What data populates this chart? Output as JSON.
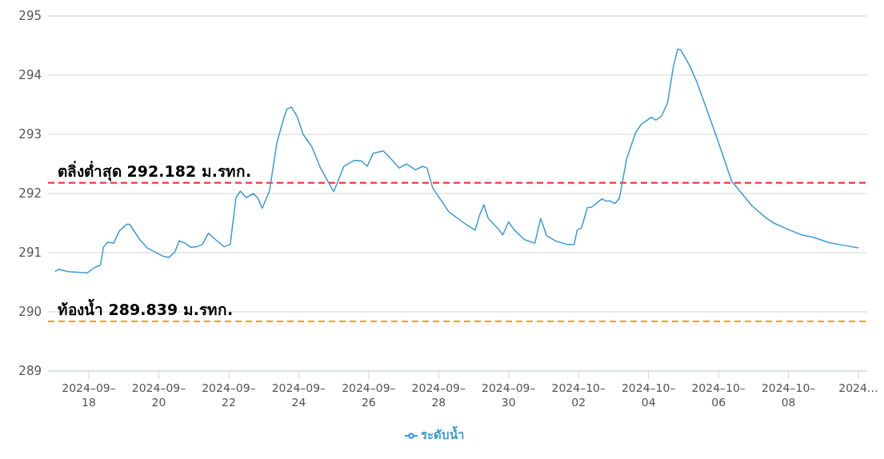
{
  "chart_data": {
    "type": "line",
    "x": [
      "2024-09-17T01:00",
      "2024-09-17T03:00",
      "2024-09-17T10:00",
      "2024-09-17T23:00",
      "2024-09-18T04:00",
      "2024-09-18T08:00",
      "2024-09-18T10:00",
      "2024-09-18T13:00",
      "2024-09-18T17:00",
      "2024-09-18T21:00",
      "2024-09-19T02:00",
      "2024-09-19T04:00",
      "2024-09-19T11:00",
      "2024-09-19T16:00",
      "2024-09-20T03:00",
      "2024-09-20T07:00",
      "2024-09-20T11:00",
      "2024-09-20T14:00",
      "2024-09-20T18:00",
      "2024-09-20T22:00",
      "2024-09-21T02:00",
      "2024-09-21T06:00",
      "2024-09-21T10:00",
      "2024-09-21T15:00",
      "2024-09-21T21:00",
      "2024-09-22T01:00",
      "2024-09-22T05:00",
      "2024-09-22T08:00",
      "2024-09-22T12:00",
      "2024-09-22T17:00",
      "2024-09-22T20:00",
      "2024-09-22T23:00",
      "2024-09-23T04:00",
      "2024-09-23T09:00",
      "2024-09-23T14:00",
      "2024-09-23T16:00",
      "2024-09-23T19:00",
      "2024-09-23T23:00",
      "2024-09-24T03:00",
      "2024-09-24T09:00",
      "2024-09-24T15:00",
      "2024-09-25T00:00",
      "2024-09-25T07:00",
      "2024-09-25T14:00",
      "2024-09-25T19:00",
      "2024-09-25T23:00",
      "2024-09-26T03:00",
      "2024-09-26T10:00",
      "2024-09-26T14:00",
      "2024-09-26T21:00",
      "2024-09-27T02:00",
      "2024-09-27T08:00",
      "2024-09-27T13:00",
      "2024-09-27T16:00",
      "2024-09-27T20:00",
      "2024-09-28T07:00",
      "2024-09-28T18:00",
      "2024-09-29T01:00",
      "2024-09-29T04:00",
      "2024-09-29T07:00",
      "2024-09-29T10:00",
      "2024-09-29T17:00",
      "2024-09-29T20:00",
      "2024-09-30T00:00",
      "2024-09-30T04:00",
      "2024-09-30T11:00",
      "2024-09-30T18:00",
      "2024-09-30T22:00",
      "2024-10-01T02:00",
      "2024-10-01T08:00",
      "2024-10-01T16:00",
      "2024-10-01T21:00",
      "2024-10-01T23:00",
      "2024-10-02T02:00",
      "2024-10-02T06:00",
      "2024-10-02T09:00",
      "2024-10-02T16:00",
      "2024-10-02T19:00",
      "2024-10-02T21:00",
      "2024-10-03T01:00",
      "2024-10-03T04:00",
      "2024-10-03T09:00",
      "2024-10-03T15:00",
      "2024-10-03T19:00",
      "2024-10-04T02:00",
      "2024-10-04T05:00",
      "2024-10-04T09:00",
      "2024-10-04T13:00",
      "2024-10-04T17:00",
      "2024-10-04T20:00",
      "2024-10-04T22:00",
      "2024-10-05T04:00",
      "2024-10-05T09:00",
      "2024-10-05T16:00",
      "2024-10-06T00:00",
      "2024-10-06T09:00",
      "2024-10-06T16:00",
      "2024-10-06T23:00",
      "2024-10-07T09:00",
      "2024-10-07T14:00",
      "2024-10-08T01:00",
      "2024-10-08T09:00",
      "2024-10-08T17:00",
      "2024-10-09T04:00",
      "2024-10-09T15:00",
      "2024-10-10T00:00"
    ],
    "series": [
      {
        "name": "ระดับน้ำ",
        "color": "#3a9ad9",
        "values": [
          290.68,
          290.72,
          290.68,
          290.66,
          290.75,
          290.79,
          291.09,
          291.18,
          291.16,
          291.37,
          291.48,
          291.48,
          291.22,
          291.08,
          290.94,
          290.92,
          291.01,
          291.2,
          291.16,
          291.09,
          291.1,
          291.14,
          291.33,
          291.22,
          291.1,
          291.14,
          291.93,
          292.04,
          291.93,
          292.0,
          291.92,
          291.75,
          292.05,
          292.86,
          293.29,
          293.43,
          293.46,
          293.3,
          293.0,
          292.79,
          292.43,
          292.03,
          292.46,
          292.56,
          292.55,
          292.46,
          292.68,
          292.72,
          292.62,
          292.43,
          292.5,
          292.4,
          292.46,
          292.43,
          292.09,
          291.69,
          291.49,
          291.38,
          291.63,
          291.81,
          291.58,
          291.4,
          291.3,
          291.52,
          291.38,
          291.22,
          291.16,
          291.58,
          291.29,
          291.2,
          291.14,
          291.14,
          291.38,
          291.42,
          291.76,
          291.77,
          291.91,
          291.87,
          291.88,
          291.83,
          291.92,
          292.59,
          293.02,
          293.17,
          293.29,
          293.24,
          293.31,
          293.53,
          294.14,
          294.44,
          294.43,
          294.17,
          293.89,
          293.42,
          292.86,
          292.21,
          292.0,
          291.79,
          291.58,
          291.5,
          291.38,
          291.3,
          291.26,
          291.17,
          291.12,
          291.08
        ]
      }
    ],
    "xlim": [
      "2024-09-16T20:00",
      "2024-10-10T06:00"
    ],
    "xticks": [
      {
        "value": "2024-09-18",
        "label": "2024–09–18"
      },
      {
        "value": "2024-09-20",
        "label": "2024–09–20"
      },
      {
        "value": "2024-09-22",
        "label": "2024–09–22"
      },
      {
        "value": "2024-09-24",
        "label": "2024–09–24"
      },
      {
        "value": "2024-09-26",
        "label": "2024–09–26"
      },
      {
        "value": "2024-09-28",
        "label": "2024–09–28"
      },
      {
        "value": "2024-09-30",
        "label": "2024–09–30"
      },
      {
        "value": "2024-10-02",
        "label": "2024–10–02"
      },
      {
        "value": "2024-10-04",
        "label": "2024–10–04"
      },
      {
        "value": "2024-10-06",
        "label": "2024–10–06"
      },
      {
        "value": "2024-10-08",
        "label": "2024–10–08"
      },
      {
        "value": "2024-10-10",
        "label": "2024…"
      }
    ],
    "ylim": [
      289,
      295
    ],
    "yticks": [
      289,
      290,
      291,
      292,
      293,
      294,
      295
    ],
    "ref_lines": [
      {
        "axis": "y",
        "value": 292.182,
        "label": "ตลิ่งต่ำสุด 292.182 ม.รทก.",
        "color": "#ff3333",
        "line_style": "dashed"
      },
      {
        "axis": "y",
        "value": 289.839,
        "label": "ท้องน้ำ 289.839 ม.รทก.",
        "color": "#f5a623",
        "line_style": "dashed"
      }
    ],
    "grid": "y",
    "legend": "bottom",
    "marker": "none",
    "line_style": "solid"
  }
}
